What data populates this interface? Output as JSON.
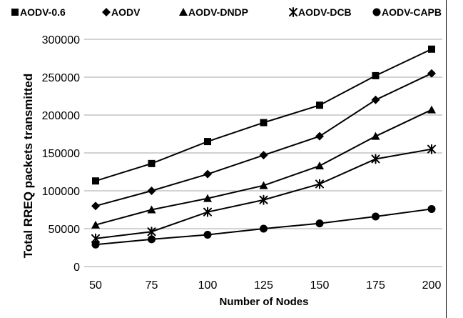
{
  "chart_data": {
    "type": "line",
    "title": "",
    "xlabel": "Number of Nodes",
    "ylabel": "Total RREQ packets transmitted",
    "x": [
      50,
      75,
      100,
      125,
      150,
      175,
      200
    ],
    "x_tick_labels": [
      "50",
      "75",
      "100",
      "125",
      "150",
      "175",
      "200"
    ],
    "ylim": [
      0,
      300000
    ],
    "y_ticks": [
      0,
      50000,
      100000,
      150000,
      200000,
      250000,
      300000
    ],
    "y_tick_labels": [
      "0",
      "50000",
      "100000",
      "150000",
      "200000",
      "250000",
      "300000"
    ],
    "grid": "horizontal",
    "legend_position": "top",
    "series": [
      {
        "name": "AODV-0.6",
        "marker": "square",
        "values": [
          113000,
          136000,
          165000,
          190000,
          213000,
          252000,
          287000
        ]
      },
      {
        "name": "AODV",
        "marker": "diamond",
        "values": [
          80000,
          100000,
          122000,
          147000,
          172000,
          220000,
          255000
        ]
      },
      {
        "name": "AODV-DNDP",
        "marker": "triangle",
        "values": [
          55000,
          75000,
          90000,
          107000,
          133000,
          172000,
          207000
        ]
      },
      {
        "name": "AODV-DCB",
        "marker": "asterisk",
        "values": [
          37000,
          46000,
          72000,
          88000,
          109000,
          142000,
          155000
        ]
      },
      {
        "name": "AODV-CAPB",
        "marker": "circle",
        "values": [
          29000,
          36000,
          42000,
          50000,
          57000,
          66000,
          76000
        ]
      }
    ],
    "colors": {
      "line": "#000000",
      "grid": "#a6a6a6",
      "background": "#ffffff"
    }
  }
}
